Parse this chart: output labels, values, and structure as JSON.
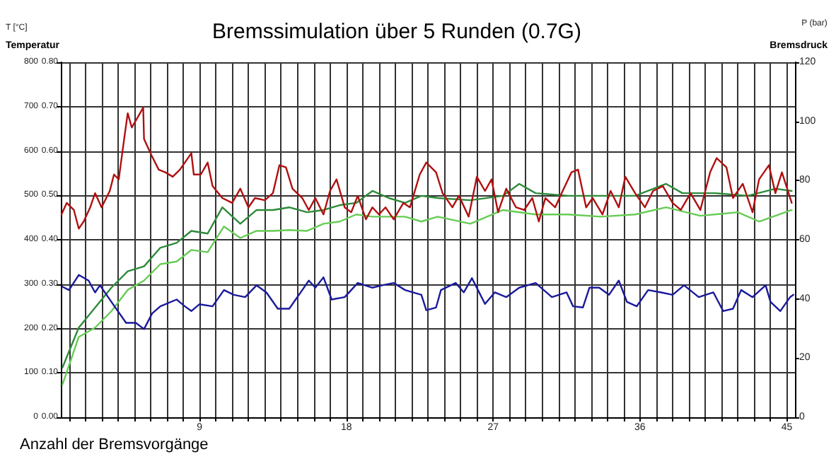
{
  "chart_data": {
    "type": "line",
    "title": "Bremssimulation über 5 Runden (0.7G)",
    "xlabel": "Anzahl der Bremsvorgänge",
    "ylabel": "T [°C]",
    "y2label": "P (bar)",
    "annotations": [
      "Temperatur",
      "Bremsdruck"
    ],
    "xlim": [
      0.5,
      45.5
    ],
    "xticks": [
      {
        "value": 1,
        "label": null
      },
      {
        "value": 2,
        "label": null
      },
      {
        "value": 3,
        "label": null
      },
      {
        "value": 4,
        "label": null
      },
      {
        "value": 5,
        "label": null
      },
      {
        "value": 6,
        "label": null
      },
      {
        "value": 7,
        "label": null
      },
      {
        "value": 8,
        "label": null
      },
      9,
      {
        "value": 10,
        "label": null
      },
      {
        "value": 11,
        "label": null
      },
      {
        "value": 12,
        "label": null
      },
      {
        "value": 13,
        "label": null
      },
      {
        "value": 14,
        "label": null
      },
      {
        "value": 15,
        "label": null
      },
      {
        "value": 16,
        "label": null
      },
      {
        "value": 17,
        "label": null
      },
      18,
      {
        "value": 19,
        "label": null
      },
      {
        "value": 20,
        "label": null
      },
      {
        "value": 21,
        "label": null
      },
      {
        "value": 22,
        "label": null
      },
      {
        "value": 23,
        "label": null
      },
      {
        "value": 24,
        "label": null
      },
      {
        "value": 25,
        "label": null
      },
      {
        "value": 26,
        "label": null
      },
      27,
      {
        "value": 28,
        "label": null
      },
      {
        "value": 29,
        "label": null
      },
      {
        "value": 30,
        "label": null
      },
      {
        "value": 31,
        "label": null
      },
      {
        "value": 32,
        "label": null
      },
      {
        "value": 33,
        "label": null
      },
      {
        "value": 34,
        "label": null
      },
      {
        "value": 35,
        "label": null
      },
      36,
      {
        "value": 37,
        "label": null
      },
      {
        "value": 38,
        "label": null
      },
      {
        "value": 39,
        "label": null
      },
      {
        "value": 40,
        "label": null
      },
      {
        "value": 41,
        "label": null
      },
      {
        "value": 42,
        "label": null
      },
      {
        "value": 43,
        "label": null
      },
      {
        "value": 44,
        "label": null
      },
      45
    ],
    "ylim": [
      0,
      800
    ],
    "yticks": [
      0,
      100,
      200,
      300,
      400,
      500,
      600,
      700,
      800
    ],
    "y2lim": [
      0,
      120
    ],
    "y2ticks": [
      0,
      20,
      40,
      60,
      80,
      100,
      120
    ],
    "y3lim": [
      0,
      0.8
    ],
    "y3ticks": [
      {
        "value": 0,
        "label": "0.00"
      },
      {
        "value": 0.1,
        "label": "0.10"
      },
      {
        "value": 0.2,
        "label": "0.20"
      },
      {
        "value": 0.3,
        "label": "0.30"
      },
      {
        "value": 0.4,
        "label": "0.40"
      },
      {
        "value": 0.5,
        "label": "0.50"
      },
      {
        "value": 0.6,
        "label": "0.60"
      },
      {
        "value": 0.7,
        "label": "0.70"
      },
      {
        "value": 0.8,
        "label": "0.80"
      }
    ],
    "grid": true,
    "marker": "none",
    "line_style": "solid",
    "series": [
      {
        "color": "#2e8b3a",
        "x": [
          0.6,
          1.6,
          3.6,
          4.6,
          5.6,
          6.6,
          7.6,
          8.5,
          9.5,
          10.4,
          11.5,
          12.5,
          13.5,
          14.5,
          15.6,
          16.6,
          17.6,
          18.6,
          19.6,
          20.6,
          21.6,
          22.6,
          23.6,
          25.6,
          27.6,
          28.6,
          29.6,
          31.6,
          33.6,
          35.7,
          37.6,
          38.6,
          40.6,
          42.6,
          44.3,
          45.3
        ],
        "values": [
          112,
          202,
          292,
          329,
          340,
          382,
          393,
          420,
          414,
          473,
          436,
          467,
          467,
          473,
          462,
          467,
          478,
          483,
          510,
          494,
          483,
          499,
          494,
          489,
          499,
          526,
          505,
          499,
          499,
          499,
          526,
          505,
          505,
          499,
          515,
          510
        ]
      },
      {
        "color": "#66cc55",
        "x": [
          0.6,
          1.6,
          2.6,
          3.6,
          4.6,
          5.6,
          6.6,
          7.6,
          8.5,
          9.5,
          10.5,
          11.5,
          12.5,
          13.5,
          14.5,
          15.6,
          16.6,
          17.6,
          18.6,
          19.6,
          20.6,
          21.6,
          22.6,
          23.6,
          25.6,
          27.6,
          29.6,
          31.6,
          33.6,
          35.7,
          37.6,
          39.7,
          42.0,
          43.3,
          45.3
        ],
        "values": [
          74,
          181,
          202,
          239,
          287,
          308,
          345,
          351,
          377,
          372,
          430,
          404,
          420,
          420,
          422,
          420,
          436,
          441,
          457,
          452,
          452,
          452,
          441,
          452,
          436,
          467,
          457,
          457,
          452,
          457,
          473,
          454,
          462,
          441,
          467
        ]
      },
      {
        "color": "#b01010",
        "x": [
          0.54,
          0.86,
          1.3,
          1.6,
          1.9,
          2.3,
          2.6,
          3.0,
          3.5,
          3.76,
          4.05,
          4.4,
          4.6,
          4.85,
          5.2,
          5.55,
          5.6,
          6.06,
          6.5,
          6.9,
          7.36,
          7.8,
          8.2,
          8.5,
          8.65,
          9.08,
          9.5,
          9.8,
          10.4,
          11.0,
          11.5,
          12.0,
          12.4,
          13.0,
          13.5,
          13.9,
          14.3,
          14.7,
          15.3,
          15.7,
          16.1,
          16.6,
          17.0,
          17.4,
          17.9,
          18.3,
          18.7,
          19.2,
          19.6,
          20.0,
          20.4,
          20.9,
          21.5,
          21.9,
          22.5,
          22.9,
          23.5,
          23.9,
          24.5,
          24.9,
          25.5,
          26.0,
          26.5,
          26.9,
          27.3,
          27.8,
          28.4,
          28.9,
          29.4,
          29.8,
          30.2,
          30.8,
          31.2,
          31.8,
          32.2,
          32.7,
          33.1,
          33.7,
          34.2,
          34.7,
          35.1,
          35.7,
          36.3,
          36.8,
          37.4,
          38.0,
          38.5,
          39.1,
          39.7,
          40.3,
          40.7,
          41.3,
          41.7,
          42.3,
          42.9,
          43.3,
          43.9,
          44.3,
          44.7,
          45.3
        ],
        "values": [
          457,
          483,
          467,
          425,
          441,
          473,
          505,
          473,
          510,
          547,
          536,
          632,
          685,
          653,
          675,
          698,
          627,
          590,
          558,
          552,
          542,
          558,
          579,
          595,
          547,
          547,
          574,
          521,
          494,
          483,
          515,
          473,
          494,
          489,
          505,
          568,
          563,
          515,
          494,
          467,
          494,
          457,
          510,
          536,
          473,
          462,
          499,
          446,
          473,
          457,
          473,
          446,
          483,
          473,
          547,
          574,
          552,
          505,
          473,
          499,
          452,
          542,
          510,
          536,
          462,
          515,
          473,
          467,
          494,
          441,
          494,
          473,
          505,
          552,
          558,
          473,
          494,
          457,
          510,
          473,
          542,
          505,
          473,
          510,
          521,
          483,
          467,
          505,
          467,
          552,
          584,
          563,
          494,
          526,
          462,
          536,
          568,
          505,
          552,
          483
        ]
      },
      {
        "color": "#1a1a9c",
        "axis": "y2",
        "x": [
          0.6,
          1.0,
          1.6,
          2.2,
          2.6,
          2.9,
          3.6,
          4.5,
          5.1,
          5.6,
          6.1,
          6.6,
          7.6,
          8.1,
          8.5,
          9.0,
          9.8,
          10.5,
          11.1,
          11.8,
          12.5,
          13.1,
          13.8,
          14.5,
          15.3,
          15.7,
          16.1,
          16.6,
          17.1,
          17.9,
          18.7,
          19.6,
          20.2,
          20.9,
          21.6,
          22.6,
          22.9,
          23.5,
          23.8,
          24.7,
          25.2,
          25.7,
          26.5,
          27.1,
          27.8,
          28.6,
          29.6,
          30.6,
          31.5,
          31.9,
          32.5,
          32.9,
          33.5,
          34.1,
          34.7,
          35.2,
          35.8,
          36.5,
          37.3,
          38.0,
          38.7,
          39.6,
          40.5,
          41.1,
          41.7,
          42.2,
          42.9,
          43.7,
          44.0,
          44.6,
          45.2,
          45.4
        ],
        "values": [
          44.1,
          43,
          48.1,
          46.2,
          42.2,
          44.6,
          39,
          31.9,
          31.9,
          29.8,
          35.1,
          37.5,
          39.8,
          37.5,
          35.9,
          38.2,
          37.5,
          43,
          41.4,
          40.6,
          44.6,
          42.2,
          36.7,
          36.7,
          43,
          46.2,
          43.8,
          47.3,
          39.8,
          40.6,
          45.4,
          43.8,
          44.6,
          45.4,
          43,
          41.4,
          36.2,
          37.1,
          43,
          45.4,
          42.2,
          47,
          38.3,
          42.2,
          40.6,
          43.8,
          45.4,
          40.6,
          42.2,
          37.5,
          37.1,
          43.8,
          43.8,
          41.4,
          46.2,
          39,
          37.5,
          43,
          42.2,
          41.4,
          44.6,
          40.6,
          42.2,
          35.9,
          36.7,
          43,
          40.6,
          44.6,
          39,
          35.9,
          40.6,
          41.4
        ]
      }
    ]
  }
}
